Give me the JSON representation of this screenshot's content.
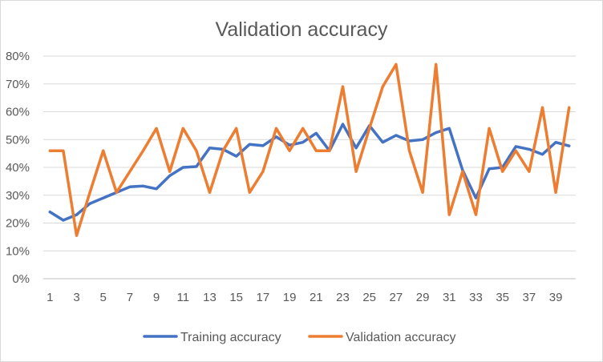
{
  "chart_data": {
    "type": "line",
    "title": "Validation accuracy",
    "xlabel": "",
    "ylabel": "",
    "ylim": [
      0,
      0.8
    ],
    "ytick_labels": [
      "0%",
      "10%",
      "20%",
      "30%",
      "40%",
      "50%",
      "60%",
      "70%",
      "80%"
    ],
    "xtick_labels": [
      "1",
      "3",
      "5",
      "7",
      "9",
      "11",
      "13",
      "15",
      "17",
      "19",
      "21",
      "23",
      "25",
      "27",
      "29",
      "31",
      "33",
      "35",
      "37",
      "39"
    ],
    "x": [
      1,
      2,
      3,
      4,
      5,
      6,
      7,
      8,
      9,
      10,
      11,
      12,
      13,
      14,
      15,
      16,
      17,
      18,
      19,
      20,
      21,
      22,
      23,
      24,
      25,
      26,
      27,
      28,
      29,
      30,
      31,
      32,
      33,
      34,
      35,
      36,
      37,
      38,
      39,
      40
    ],
    "grid": "horizontal",
    "legend_position": "bottom",
    "series": [
      {
        "name": "Training accuracy",
        "color": "#4472C4",
        "values": [
          0.24,
          0.21,
          0.23,
          0.27,
          0.29,
          0.31,
          0.33,
          0.333,
          0.323,
          0.37,
          0.4,
          0.403,
          0.47,
          0.465,
          0.44,
          0.483,
          0.478,
          0.51,
          0.48,
          0.49,
          0.523,
          0.46,
          0.555,
          0.47,
          0.55,
          0.49,
          0.515,
          0.495,
          0.5,
          0.525,
          0.54,
          0.39,
          0.29,
          0.395,
          0.4,
          0.475,
          0.465,
          0.447,
          0.49,
          0.477
        ]
      },
      {
        "name": "Validation accuracy",
        "color": "#ED7D31",
        "values": [
          0.46,
          0.46,
          0.155,
          0.31,
          0.46,
          0.31,
          0.385,
          0.46,
          0.54,
          0.385,
          0.54,
          0.46,
          0.31,
          0.46,
          0.54,
          0.31,
          0.385,
          0.54,
          0.46,
          0.54,
          0.46,
          0.46,
          0.69,
          0.385,
          0.54,
          0.69,
          0.77,
          0.46,
          0.31,
          0.77,
          0.23,
          0.385,
          0.23,
          0.54,
          0.385,
          0.46,
          0.385,
          0.615,
          0.31,
          0.615
        ]
      }
    ]
  }
}
